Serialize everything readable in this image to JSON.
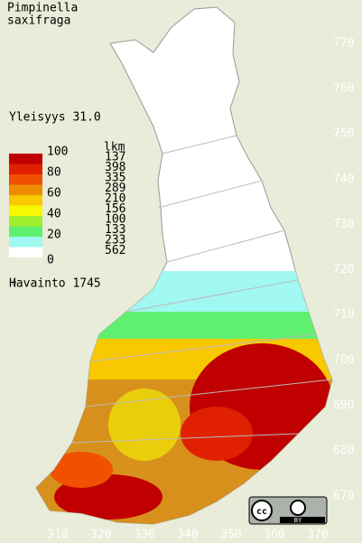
{
  "title": [
    "Pimpinella",
    "saxifraga"
  ],
  "frequency": "Yleisyys  31.0",
  "legend": {
    "levels": [
      "100",
      "80",
      "60",
      "40",
      "20",
      "0"
    ],
    "count_header": "lkm",
    "bands": [
      {
        "color": "#c00000",
        "count": "137"
      },
      {
        "color": "#e02000",
        "count": "398"
      },
      {
        "color": "#f05000",
        "count": "335"
      },
      {
        "color": "#f08c00",
        "count": "289"
      },
      {
        "color": "#f8c800",
        "count": "210"
      },
      {
        "color": "#f8f800",
        "count": "156"
      },
      {
        "color": "#a0f030",
        "count": "100"
      },
      {
        "color": "#60f070",
        "count": "133"
      },
      {
        "color": "#a0f8f0",
        "count": "233"
      },
      {
        "color": "#ffffff",
        "count": "562"
      }
    ],
    "observations": "Havainto 1745"
  },
  "axes": {
    "x": [
      "310",
      "320",
      "330",
      "340",
      "350",
      "360",
      "370"
    ],
    "y": [
      "770",
      "760",
      "750",
      "740",
      "730",
      "720",
      "710",
      "700",
      "690",
      "680",
      "670"
    ]
  },
  "license": "BY"
}
